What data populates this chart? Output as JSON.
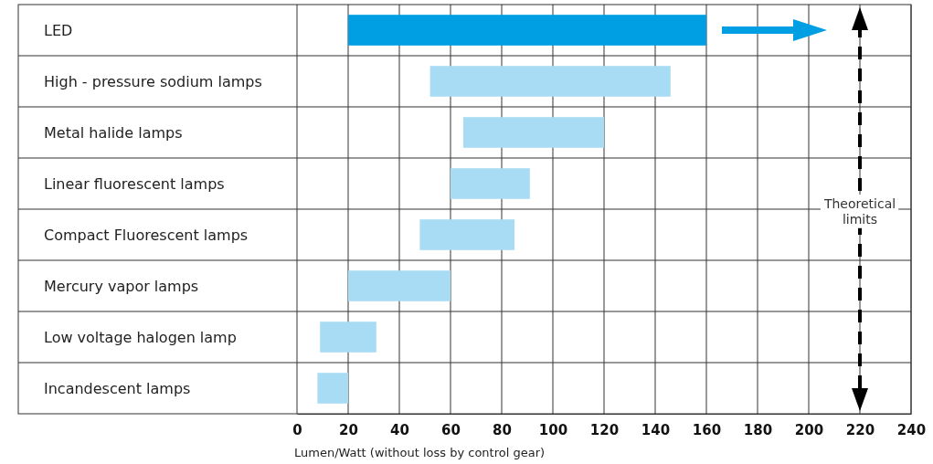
{
  "chart_data": {
    "type": "bar",
    "orientation": "horizontal",
    "xlabel": "Lumen/Watt (without loss by control gear)",
    "categories": [
      "LED",
      "High - pressure sodium lamps",
      "Metal halide lamps",
      "Linear fluorescent lamps",
      "Compact Fluorescent lamps",
      "Mercury vapor lamps",
      "Low voltage halogen lamp",
      "Incandescent lamps"
    ],
    "base": [
      20,
      52,
      65,
      60,
      48,
      20,
      9,
      8
    ],
    "values": [
      140,
      94,
      55,
      31,
      37,
      40,
      22,
      12
    ],
    "colors": [
      "#009fe3",
      "#a8dcf4",
      "#a8dcf4",
      "#a8dcf4",
      "#a8dcf4",
      "#a8dcf4",
      "#a8dcf4",
      "#a8dcf4"
    ],
    "xlim": [
      0,
      240
    ],
    "xticks": [
      0,
      20,
      40,
      60,
      80,
      100,
      120,
      140,
      160,
      180,
      200,
      220,
      240
    ],
    "grid": "x",
    "ref_lines": [
      {
        "axis": "x",
        "value": 220,
        "label": "Theoretical limits",
        "color": "#000000",
        "line_style": "dashed"
      }
    ]
  }
}
